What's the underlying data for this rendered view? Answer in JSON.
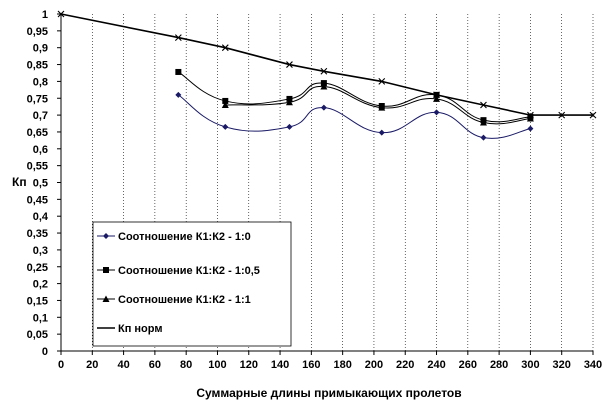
{
  "chart_data": {
    "type": "line",
    "title": "",
    "xlabel": "Суммарные длины примыкающих пролетов",
    "ylabel": "Кп",
    "xlim": [
      0,
      340
    ],
    "ylim": [
      0,
      1
    ],
    "x_ticks": [
      "0",
      "20",
      "40",
      "60",
      "80",
      "100",
      "120",
      "140",
      "160",
      "180",
      "200",
      "220",
      "240",
      "260",
      "280",
      "300",
      "320",
      "340"
    ],
    "y_ticks": [
      "0",
      "0,05",
      "0,1",
      "0,15",
      "0,2",
      "0,25",
      "0,3",
      "0,35",
      "0,4",
      "0,45",
      "0,5",
      "0,55",
      "0,6",
      "0,65",
      "0,7",
      "0,75",
      "0,8",
      "0,85",
      "0,9",
      "0,95",
      "1"
    ],
    "grid": "vertical dotted",
    "legend_position": "lower-left",
    "series": [
      {
        "name": "Соотношение К1:К2 - 1:0",
        "marker": "diamond",
        "smooth": true,
        "points": [
          [
            75,
            0.76
          ],
          [
            105,
            0.665
          ],
          [
            146,
            0.665
          ],
          [
            168,
            0.722
          ],
          [
            205,
            0.648
          ],
          [
            240,
            0.708
          ],
          [
            270,
            0.633
          ],
          [
            300,
            0.66
          ]
        ]
      },
      {
        "name": "Соотношение К1:К2 - 1:0,5",
        "marker": "square",
        "smooth": true,
        "points": [
          [
            75,
            0.828
          ],
          [
            105,
            0.742
          ],
          [
            146,
            0.748
          ],
          [
            168,
            0.795
          ],
          [
            205,
            0.727
          ],
          [
            240,
            0.76
          ],
          [
            270,
            0.685
          ],
          [
            300,
            0.695
          ]
        ]
      },
      {
        "name": "Соотношение К1:К2 - 1:1",
        "marker": "triangle",
        "smooth": true,
        "points": [
          [
            105,
            0.73
          ],
          [
            146,
            0.738
          ],
          [
            168,
            0.785
          ],
          [
            205,
            0.722
          ],
          [
            240,
            0.748
          ],
          [
            270,
            0.678
          ],
          [
            300,
            0.69
          ]
        ]
      },
      {
        "name": "Кп норм",
        "marker": "x",
        "smooth": false,
        "points": [
          [
            0,
            1.0
          ],
          [
            75,
            0.93
          ],
          [
            105,
            0.9
          ],
          [
            146,
            0.85
          ],
          [
            168,
            0.83
          ],
          [
            205,
            0.8
          ],
          [
            240,
            0.76
          ],
          [
            270,
            0.73
          ],
          [
            300,
            0.7
          ],
          [
            320,
            0.7
          ],
          [
            340,
            0.7
          ]
        ]
      }
    ]
  }
}
